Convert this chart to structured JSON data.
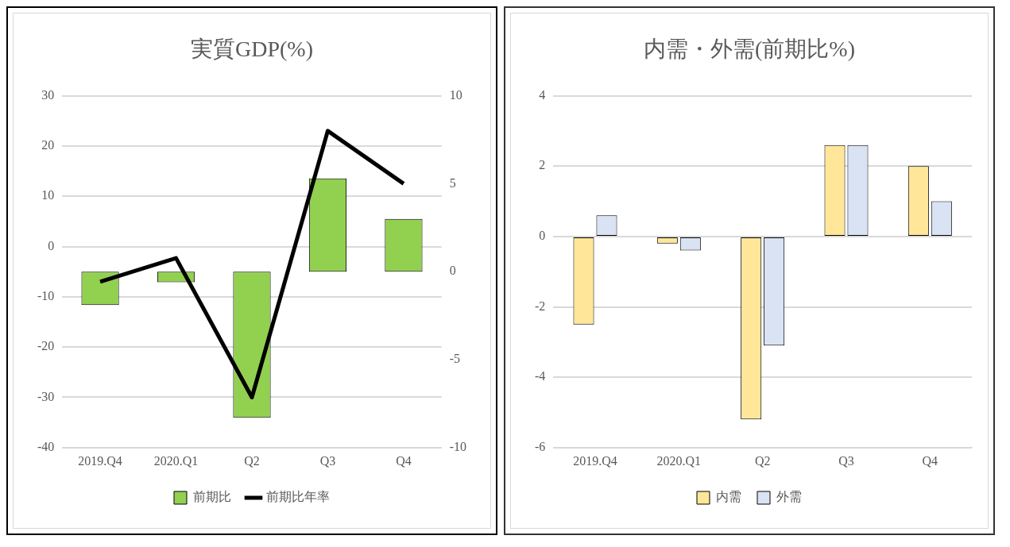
{
  "chart_data": [
    {
      "type": "bar",
      "title": "実質GDP(%)",
      "categories": [
        "2019.Q4",
        "2020.Q1",
        "Q2",
        "Q3",
        "Q4"
      ],
      "series": [
        {
          "name": "前期比",
          "type": "bar",
          "axis": "y2",
          "color": "#92d050",
          "values": [
            -1.9,
            -0.6,
            -8.3,
            5.3,
            3.0
          ]
        },
        {
          "name": "前期比年率",
          "type": "line",
          "color": "#000000",
          "values": [
            -7.0,
            -2.3,
            -30.0,
            23.0,
            12.5
          ]
        }
      ],
      "ylim": [
        -40,
        30
      ],
      "yticks": [
        -40,
        -30,
        -20,
        -10,
        0,
        10,
        20,
        30
      ],
      "y2lim": [
        -10,
        10
      ],
      "y2ticks": [
        -10,
        -5,
        0,
        5,
        10
      ],
      "grid": "y",
      "legend": "bottom",
      "marker": "none"
    },
    {
      "type": "bar",
      "title": "内需・外需(前期比%)",
      "categories": [
        "2019.Q4",
        "2020.Q1",
        "Q2",
        "Q3",
        "Q4"
      ],
      "series": [
        {
          "name": "内需",
          "color": "#ffe699",
          "values": [
            -2.5,
            -0.2,
            -5.2,
            2.6,
            2.0
          ]
        },
        {
          "name": "外需",
          "color": "#dae3f3",
          "values": [
            0.6,
            -0.4,
            -3.1,
            2.6,
            1.0
          ]
        }
      ],
      "ylim": [
        -6,
        4
      ],
      "yticks": [
        -6,
        -4,
        -2,
        0,
        2,
        4
      ],
      "grid": "y",
      "legend": "bottom"
    }
  ]
}
